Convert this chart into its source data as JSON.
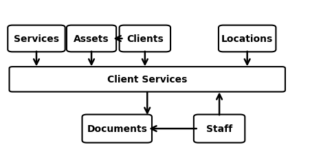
{
  "boxes": {
    "Services": [
      0.04,
      0.68,
      0.155,
      0.14
    ],
    "Assets": [
      0.23,
      0.68,
      0.13,
      0.14
    ],
    "Clients": [
      0.4,
      0.68,
      0.135,
      0.14
    ],
    "Locations": [
      0.72,
      0.68,
      0.155,
      0.14
    ],
    "Client Services": [
      0.04,
      0.42,
      0.87,
      0.14
    ],
    "Documents": [
      0.28,
      0.1,
      0.195,
      0.15
    ],
    "Staff": [
      0.64,
      0.1,
      0.135,
      0.15
    ]
  },
  "arrows": [
    {
      "from": "Clients",
      "to": "Assets",
      "type": "h_left"
    },
    {
      "from": "Services",
      "to": "Client Services",
      "type": "v_down_cx"
    },
    {
      "from": "Assets",
      "to": "Client Services",
      "type": "v_down_cx"
    },
    {
      "from": "Clients",
      "to": "Client Services",
      "type": "v_down_cx"
    },
    {
      "from": "Locations",
      "to": "Client Services",
      "type": "v_down_to_right_edge"
    },
    {
      "from": "Client Services",
      "to": "Documents",
      "type": "v_down_cx"
    },
    {
      "from": "Staff",
      "to": "Documents",
      "type": "h_left"
    },
    {
      "from": "Staff",
      "to": "Client Services",
      "type": "v_up_to_bottom_edge"
    }
  ],
  "font_size": 10,
  "box_color": "white",
  "border_color": "black",
  "text_color": "black",
  "arrow_color": "black",
  "bg_color": "white",
  "lw": 1.8,
  "arrow_scale": 14
}
